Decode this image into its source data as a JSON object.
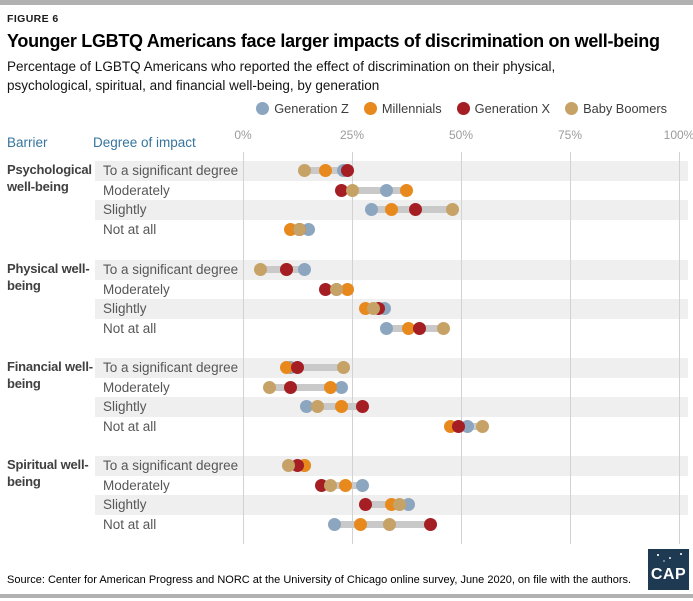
{
  "page": {
    "figure_label": "FIGURE 6",
    "title": "Younger LGBTQ Americans face larger impacts of discrimination on well-being",
    "subtitle": "Percentage of LGBTQ Americans who reported the effect of discrimination on their physical, psychological, spiritual, and financial well-being, by generation",
    "source": "Source: Center for American Progress and NORC at the University of Chicago online survey, June 2020, on file with the authors.",
    "logo_text": "CAP"
  },
  "columns": {
    "barrier": "Barrier",
    "impact": "Degree of impact"
  },
  "colors": {
    "generation_z": "#8ca6c0",
    "millennials": "#e8891d",
    "generation_x": "#a41e23",
    "baby_boomers": "#c6a266",
    "header_blue": "#36749d",
    "stripe": "#efefef",
    "gridline": "#d2d2d2",
    "connector": "#c9c9c9",
    "logo_navy": "#1d3a52"
  },
  "chart_data": {
    "type": "scatter",
    "variant": "dot-plot",
    "title": "Younger LGBTQ Americans face larger impacts of discrimination on well-being",
    "x_axis": {
      "min": 0,
      "max": 100,
      "unit": "%",
      "ticks": [
        "0%",
        "25%",
        "50%",
        "75%",
        "100%"
      ]
    },
    "grid": true,
    "legend_position": "top-right",
    "legend": [
      {
        "name": "Generation Z",
        "color": "#8ca6c0"
      },
      {
        "name": "Millennials",
        "color": "#e8891d"
      },
      {
        "name": "Generation X",
        "color": "#a41e23"
      },
      {
        "name": "Baby Boomers",
        "color": "#c6a266"
      }
    ],
    "series_order_note": "values arrays follow legend order: Generation Z, Millennials, Generation X, Baby Boomers (percent)",
    "sections": [
      {
        "barrier": "Psychological well-being",
        "rows": [
          {
            "impact": "To a significant degree",
            "values": [
              23,
              19,
              24,
              14
            ]
          },
          {
            "impact": "Moderately",
            "values": [
              33,
              37.5,
              22.5,
              25
            ]
          },
          {
            "impact": "Slightly",
            "values": [
              29.5,
              34,
              39.5,
              48
            ]
          },
          {
            "impact": "Not at all",
            "values": [
              15,
              11,
              13,
              13
            ]
          }
        ]
      },
      {
        "barrier": "Physical well-being",
        "rows": [
          {
            "impact": "To a significant degree",
            "values": [
              14,
              10,
              10,
              4
            ]
          },
          {
            "impact": "Moderately",
            "values": [
              21.5,
              24,
              19,
              21.5
            ]
          },
          {
            "impact": "Slightly",
            "values": [
              32.5,
              28,
              31,
              30
            ]
          },
          {
            "impact": "Not at all",
            "values": [
              33,
              38,
              40.5,
              46
            ]
          }
        ]
      },
      {
        "barrier": "Financial well-being",
        "rows": [
          {
            "impact": "To a significant degree",
            "values": [
              11,
              10,
              12.5,
              23
            ]
          },
          {
            "impact": "Moderately",
            "values": [
              22.5,
              20,
              11,
              6
            ]
          },
          {
            "impact": "Slightly",
            "values": [
              14.5,
              22.5,
              27.5,
              17
            ]
          },
          {
            "impact": "Not at all",
            "values": [
              51.5,
              47.5,
              49.5,
              55
            ]
          }
        ]
      },
      {
        "barrier": "Spiritual well-being",
        "rows": [
          {
            "impact": "To a significant degree",
            "values": [
              14,
              14,
              12.5,
              10.5
            ]
          },
          {
            "impact": "Moderately",
            "values": [
              27.5,
              23.5,
              18,
              20
            ]
          },
          {
            "impact": "Slightly",
            "values": [
              38,
              34,
              28,
              36
            ]
          },
          {
            "impact": "Not at all",
            "values": [
              21,
              27,
              43,
              33.5
            ]
          }
        ]
      }
    ]
  }
}
